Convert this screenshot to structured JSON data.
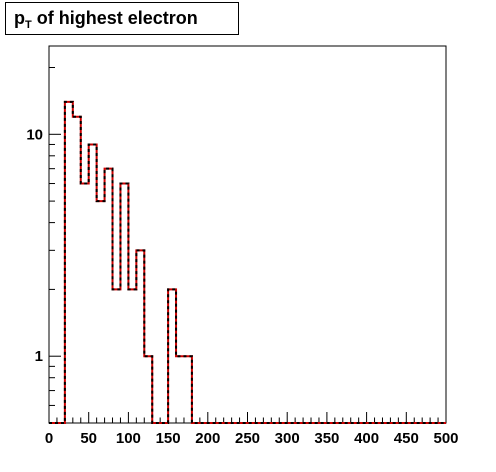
{
  "title": {
    "main": "p",
    "sub": "T",
    "rest": " of highest electron"
  },
  "chart_data": {
    "type": "histogram",
    "bin_width": 10,
    "x_range": [
      0,
      500
    ],
    "y_range": [
      0.5,
      25
    ],
    "y_scale": "log",
    "x_ticks": [
      "0",
      "50",
      "100",
      "150",
      "200",
      "250",
      "300",
      "350",
      "400",
      "450",
      "500"
    ],
    "y_ticks": [
      {
        "value": 1,
        "label": "1"
      },
      {
        "value": 10,
        "label": "10"
      }
    ],
    "bins": [
      {
        "x": 20,
        "count": 14
      },
      {
        "x": 30,
        "count": 12
      },
      {
        "x": 40,
        "count": 6
      },
      {
        "x": 50,
        "count": 9
      },
      {
        "x": 60,
        "count": 5
      },
      {
        "x": 70,
        "count": 7
      },
      {
        "x": 80,
        "count": 2
      },
      {
        "x": 90,
        "count": 6
      },
      {
        "x": 100,
        "count": 2
      },
      {
        "x": 110,
        "count": 3
      },
      {
        "x": 120,
        "count": 1
      },
      {
        "x": 150,
        "count": 2
      },
      {
        "x": 160,
        "count": 1
      },
      {
        "x": 170,
        "count": 1
      }
    ],
    "series": [
      {
        "color": "#cc0000",
        "style": "solid"
      },
      {
        "color": "#000000",
        "style": "dashed"
      }
    ]
  }
}
